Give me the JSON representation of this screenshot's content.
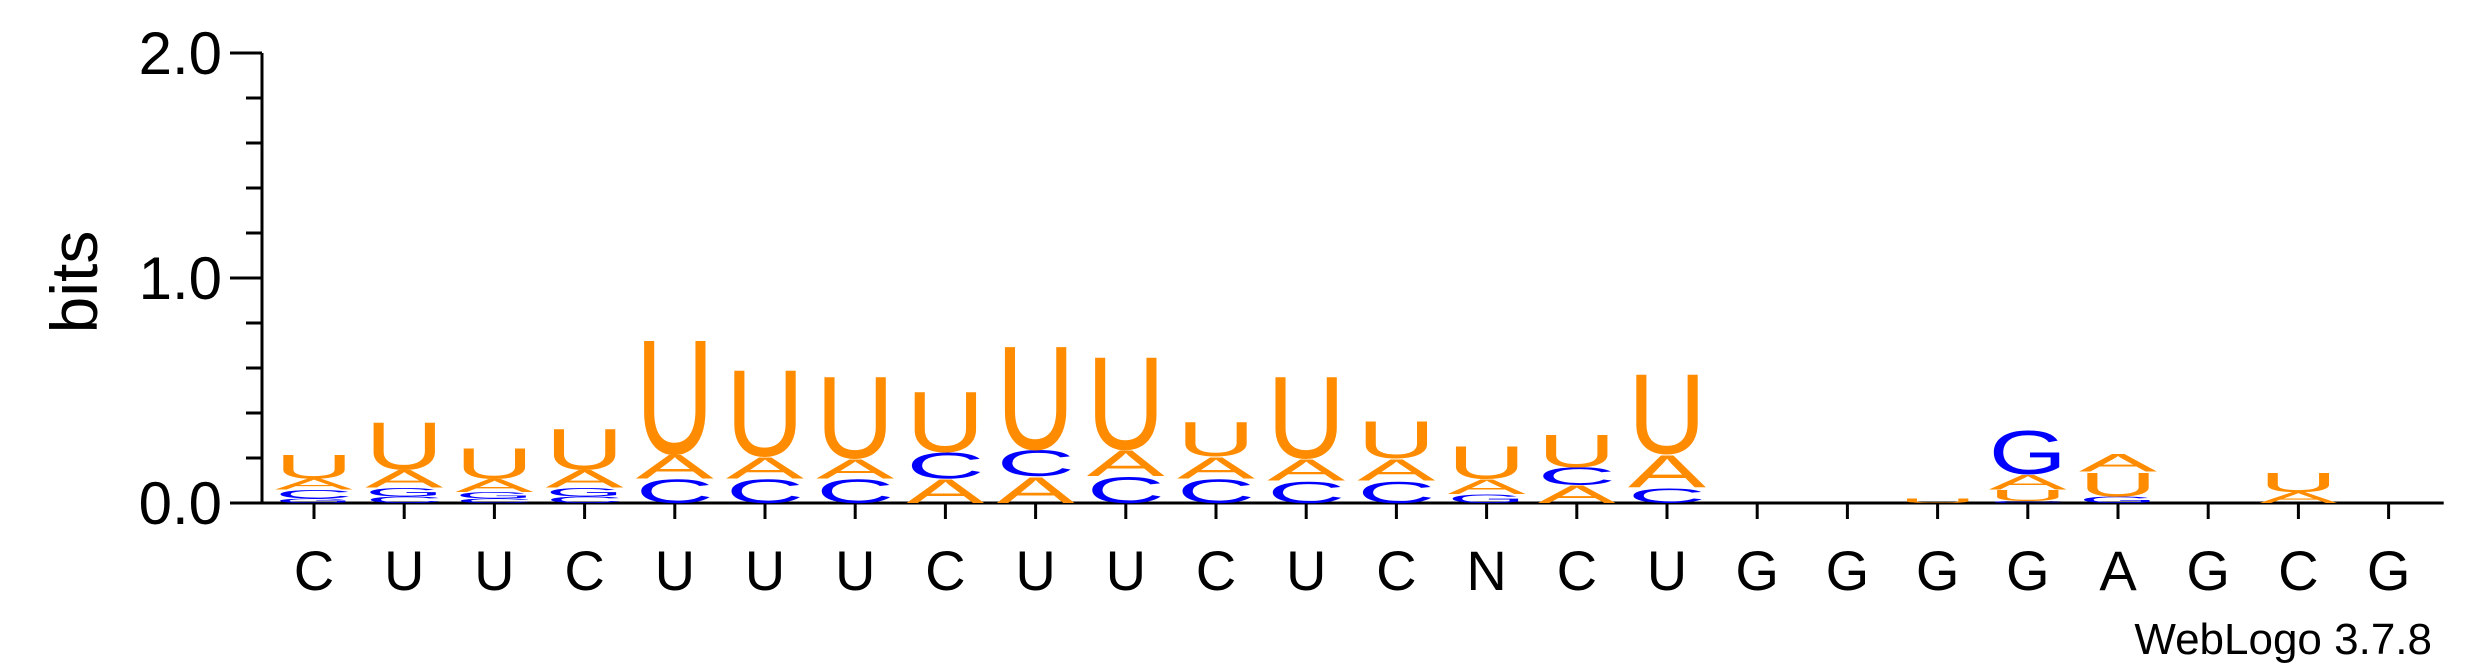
{
  "chart_data": {
    "type": "sequence-logo",
    "ylabel": "bits",
    "ylim": [
      0,
      2.0
    ],
    "yticks": [
      {
        "value": 0.0,
        "label": "0.0"
      },
      {
        "value": 1.0,
        "label": "1.0"
      },
      {
        "value": 2.0,
        "label": "2.0"
      }
    ],
    "minor_tick_step": 0.2,
    "xtick_labels": [
      "C",
      "U",
      "U",
      "C",
      "U",
      "U",
      "U",
      "C",
      "U",
      "U",
      "C",
      "U",
      "C",
      "N",
      "C",
      "U",
      "G",
      "G",
      "G",
      "G",
      "A",
      "G",
      "C",
      "G"
    ],
    "colors": {
      "A": "#ff8c00",
      "U": "#ff8c00",
      "C": "#0000ff",
      "G": "#0000ff"
    },
    "positions": [
      {
        "stack": [
          {
            "letter": "G",
            "bits": 0.02
          },
          {
            "letter": "C",
            "bits": 0.04
          },
          {
            "letter": "A",
            "bits": 0.05
          },
          {
            "letter": "U",
            "bits": 0.11
          }
        ]
      },
      {
        "stack": [
          {
            "letter": "C",
            "bits": 0.03
          },
          {
            "letter": "G",
            "bits": 0.04
          },
          {
            "letter": "A",
            "bits": 0.08
          },
          {
            "letter": "U",
            "bits": 0.22
          }
        ]
      },
      {
        "stack": [
          {
            "letter": "C",
            "bits": 0.02
          },
          {
            "letter": "G",
            "bits": 0.03
          },
          {
            "letter": "A",
            "bits": 0.06
          },
          {
            "letter": "U",
            "bits": 0.14
          }
        ]
      },
      {
        "stack": [
          {
            "letter": "C",
            "bits": 0.03
          },
          {
            "letter": "G",
            "bits": 0.04
          },
          {
            "letter": "A",
            "bits": 0.08
          },
          {
            "letter": "U",
            "bits": 0.19
          }
        ]
      },
      {
        "stack": [
          {
            "letter": "C",
            "bits": 0.11
          },
          {
            "letter": "A",
            "bits": 0.11
          },
          {
            "letter": "U",
            "bits": 0.53
          }
        ]
      },
      {
        "stack": [
          {
            "letter": "C",
            "bits": 0.11
          },
          {
            "letter": "A",
            "bits": 0.1
          },
          {
            "letter": "U",
            "bits": 0.4
          }
        ]
      },
      {
        "stack": [
          {
            "letter": "C",
            "bits": 0.11
          },
          {
            "letter": "A",
            "bits": 0.09
          },
          {
            "letter": "U",
            "bits": 0.38
          }
        ]
      },
      {
        "stack": [
          {
            "letter": "A",
            "bits": 0.11
          },
          {
            "letter": "C",
            "bits": 0.12
          },
          {
            "letter": "U",
            "bits": 0.28
          }
        ]
      },
      {
        "stack": [
          {
            "letter": "A",
            "bits": 0.12
          },
          {
            "letter": "C",
            "bits": 0.12
          },
          {
            "letter": "U",
            "bits": 0.48
          }
        ]
      },
      {
        "stack": [
          {
            "letter": "C",
            "bits": 0.12
          },
          {
            "letter": "A",
            "bits": 0.12
          },
          {
            "letter": "U",
            "bits": 0.43
          }
        ]
      },
      {
        "stack": [
          {
            "letter": "C",
            "bits": 0.11
          },
          {
            "letter": "A",
            "bits": 0.1
          },
          {
            "letter": "U",
            "bits": 0.16
          }
        ]
      },
      {
        "stack": [
          {
            "letter": "C",
            "bits": 0.1
          },
          {
            "letter": "A",
            "bits": 0.1
          },
          {
            "letter": "U",
            "bits": 0.38
          }
        ]
      },
      {
        "stack": [
          {
            "letter": "C",
            "bits": 0.1
          },
          {
            "letter": "A",
            "bits": 0.1
          },
          {
            "letter": "U",
            "bits": 0.17
          }
        ]
      },
      {
        "stack": [
          {
            "letter": "G",
            "bits": 0.04
          },
          {
            "letter": "A",
            "bits": 0.07
          },
          {
            "letter": "U",
            "bits": 0.15
          }
        ]
      },
      {
        "stack": [
          {
            "letter": "A",
            "bits": 0.08
          },
          {
            "letter": "C",
            "bits": 0.08
          },
          {
            "letter": "U",
            "bits": 0.15
          }
        ]
      },
      {
        "stack": [
          {
            "letter": "C",
            "bits": 0.07
          },
          {
            "letter": "A",
            "bits": 0.15
          },
          {
            "letter": "U",
            "bits": 0.37
          }
        ]
      },
      {
        "stack": []
      },
      {
        "stack": []
      },
      {
        "stack": [
          {
            "letter": "U",
            "bits": 0.02
          }
        ]
      },
      {
        "stack": [
          {
            "letter": "C",
            "bits": 0.01
          },
          {
            "letter": "U",
            "bits": 0.05
          },
          {
            "letter": "A",
            "bits": 0.07
          },
          {
            "letter": "G",
            "bits": 0.2
          }
        ]
      },
      {
        "stack": [
          {
            "letter": "G",
            "bits": 0.03
          },
          {
            "letter": "U",
            "bits": 0.11
          },
          {
            "letter": "A",
            "bits": 0.08
          }
        ]
      },
      {
        "stack": []
      },
      {
        "stack": [
          {
            "letter": "A",
            "bits": 0.05
          },
          {
            "letter": "U",
            "bits": 0.09
          }
        ]
      },
      {
        "stack": []
      }
    ]
  },
  "footer": {
    "credit": "WebLogo 3.7.8"
  }
}
